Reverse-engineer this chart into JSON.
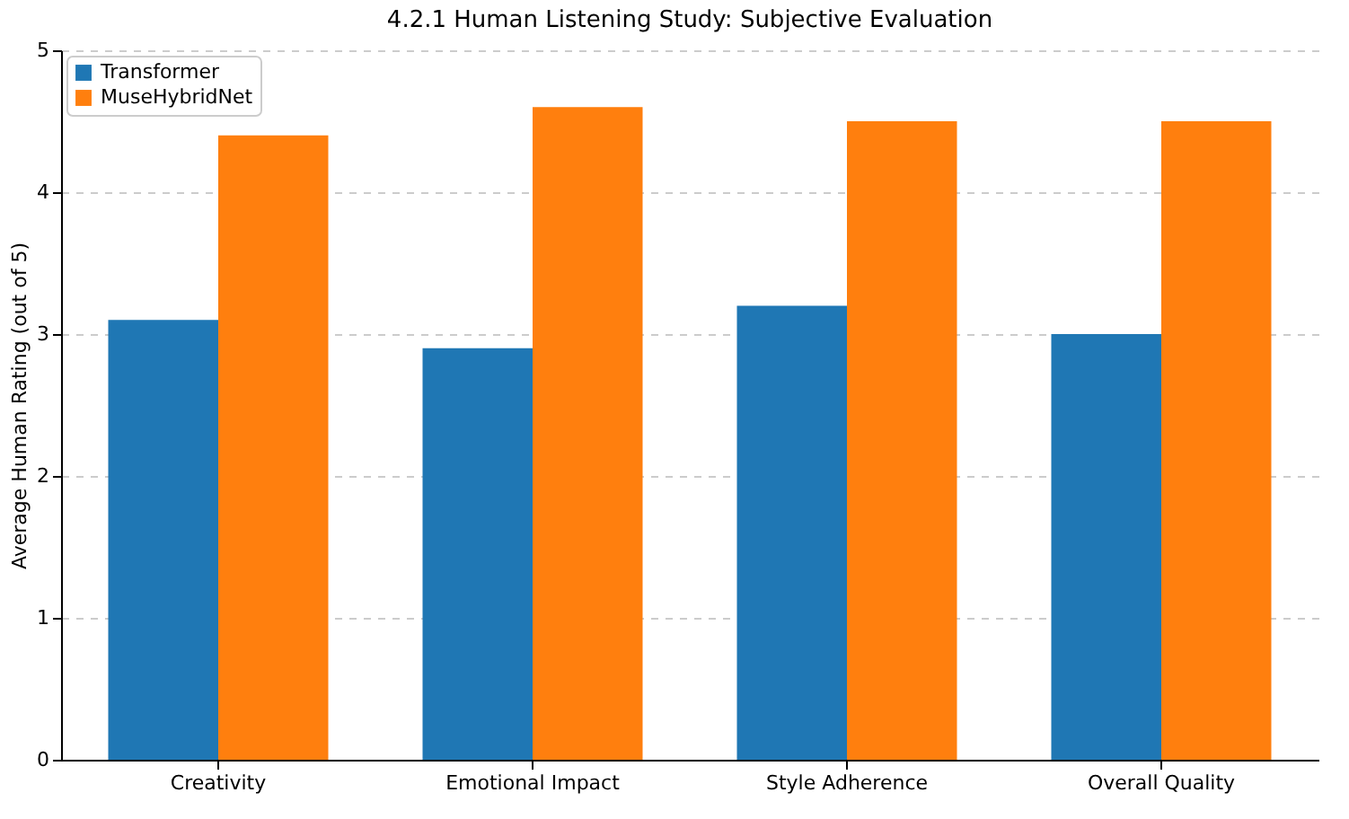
{
  "chart_data": {
    "type": "bar",
    "title": "4.2.1 Human Listening Study: Subjective Evaluation",
    "ylabel": "Average Human Rating (out of 5)",
    "categories": [
      "Creativity",
      "Emotional Impact",
      "Style Adherence",
      "Overall Quality"
    ],
    "series": [
      {
        "name": "Transformer",
        "color": "#1f77b4",
        "values": [
          3.1,
          2.9,
          3.2,
          3.0
        ]
      },
      {
        "name": "MuseHybridNet",
        "color": "#ff7f0e",
        "values": [
          4.4,
          4.6,
          4.5,
          4.5
        ]
      }
    ],
    "ylim": [
      0,
      5
    ],
    "yticks": [
      0,
      1,
      2,
      3,
      4,
      5
    ],
    "grid": "y",
    "legend": "top left"
  }
}
